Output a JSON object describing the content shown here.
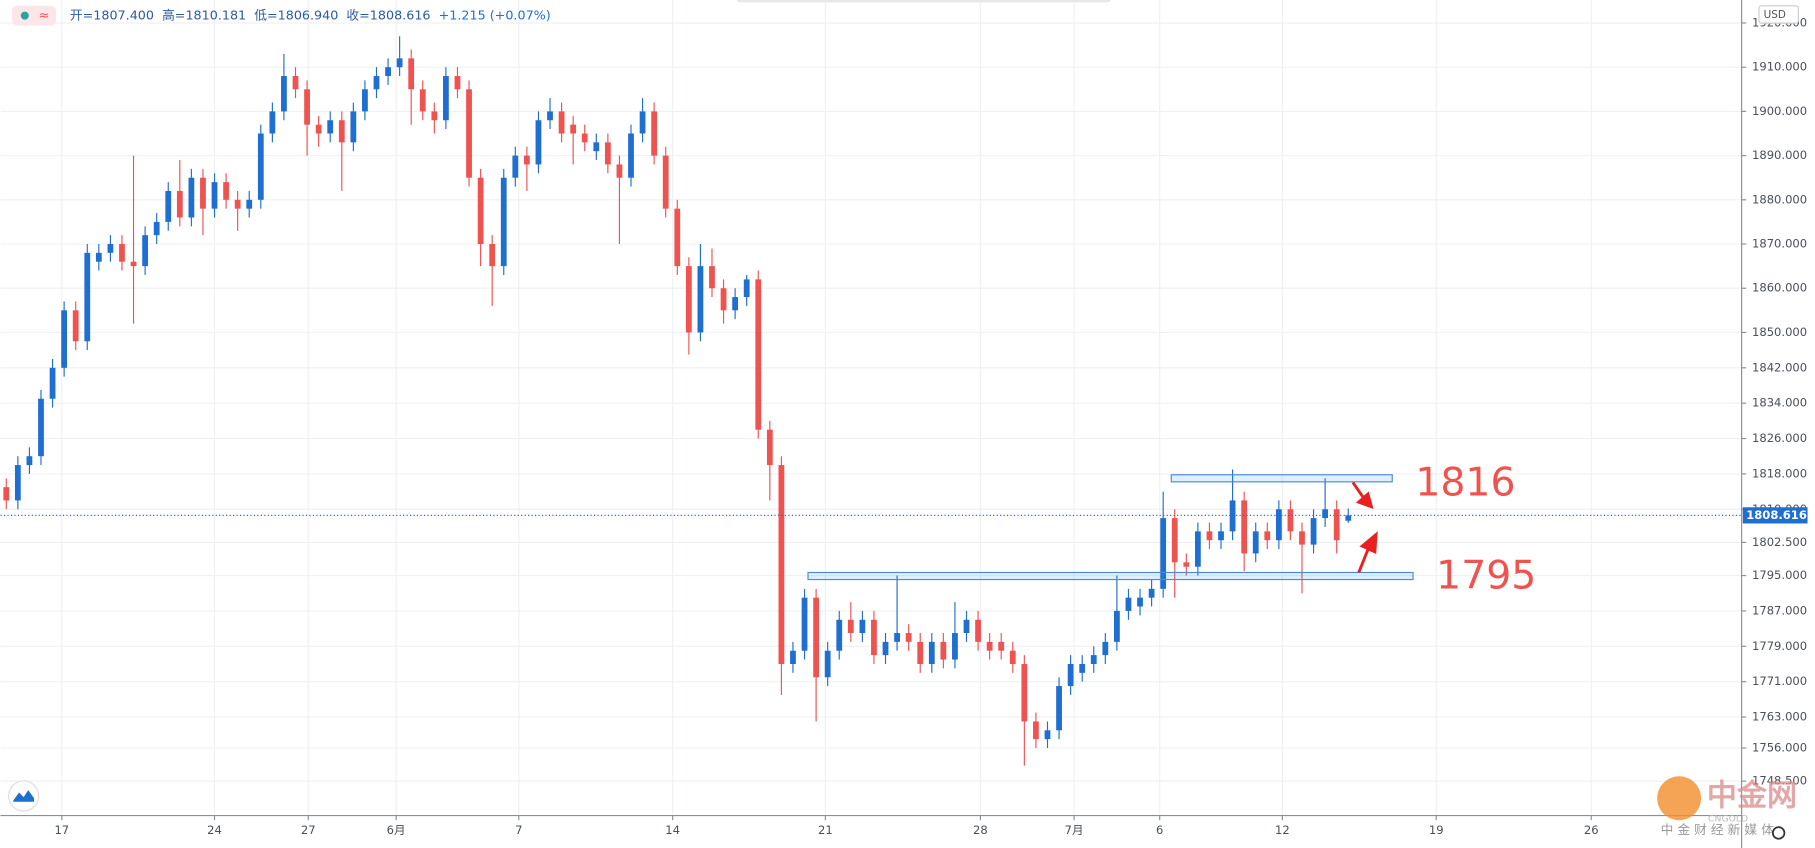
{
  "toolbar": {
    "ohlc": [
      "开=1807.400",
      "高=1810.181",
      "低=1806.940",
      "收=1808.616",
      "+1.215 (+0.07%)"
    ],
    "currency": "USD"
  },
  "watermark": {
    "brand": "中金网",
    "sub": "CNGOLD",
    "slogan": "中 金 财 经 新 媒 体"
  },
  "chart_data": {
    "type": "candlestick",
    "up_color": "#1e6fd0",
    "down_color": "#ef5350",
    "grid": true,
    "ylim": [
      1740.7,
      1925.2
    ],
    "yticks": [
      {
        "value": 1920,
        "label": "1920.000"
      },
      {
        "value": 1910,
        "label": "1910.000"
      },
      {
        "value": 1900,
        "label": "1900.000"
      },
      {
        "value": 1890,
        "label": "1890.000"
      },
      {
        "value": 1880,
        "label": "1880.000"
      },
      {
        "value": 1870,
        "label": "1870.000"
      },
      {
        "value": 1860,
        "label": "1860.000"
      },
      {
        "value": 1850,
        "label": "1850.000"
      },
      {
        "value": 1842,
        "label": "1842.000"
      },
      {
        "value": 1834,
        "label": "1834.000"
      },
      {
        "value": 1826,
        "label": "1826.000"
      },
      {
        "value": 1818,
        "label": "1818.000"
      },
      {
        "value": 1810,
        "label": "1810.000"
      },
      {
        "value": 1802.5,
        "label": "1802.500"
      },
      {
        "value": 1795,
        "label": "1795.000"
      },
      {
        "value": 1787,
        "label": "1787.000"
      },
      {
        "value": 1779,
        "label": "1779.000"
      },
      {
        "value": 1771,
        "label": "1771.000"
      },
      {
        "value": 1763,
        "label": "1763.000"
      },
      {
        "value": 1756,
        "label": "1756.000"
      },
      {
        "value": 1748.5,
        "label": "1748.500"
      }
    ],
    "xlim": [
      -0.5,
      150
    ],
    "xticks": [
      {
        "value": 4.8,
        "label": "17"
      },
      {
        "value": 18,
        "label": "24"
      },
      {
        "value": 26.1,
        "label": "27"
      },
      {
        "value": 33.7,
        "label": "6月"
      },
      {
        "value": 44.3,
        "label": "7"
      },
      {
        "value": 57.6,
        "label": "14"
      },
      {
        "value": 70.8,
        "label": "21"
      },
      {
        "value": 84.2,
        "label": "28"
      },
      {
        "value": 92.3,
        "label": "7月"
      },
      {
        "value": 99.7,
        "label": "6"
      },
      {
        "value": 110.3,
        "label": "12"
      },
      {
        "value": 123.6,
        "label": "19"
      },
      {
        "value": 137,
        "label": "26"
      }
    ],
    "open": [
      1815,
      1812,
      1820,
      1822,
      1835,
      1842,
      1855,
      1848,
      1866,
      1868,
      1870,
      1866,
      1865,
      1872,
      1875,
      1882,
      1876,
      1885,
      1878,
      1884,
      1880,
      1878,
      1880,
      1895,
      1900,
      1908,
      1905,
      1897,
      1895,
      1898,
      1893,
      1900,
      1905,
      1908,
      1910,
      1912,
      1905,
      1900,
      1898,
      1908,
      1905,
      1885,
      1870,
      1865,
      1885,
      1890,
      1888,
      1898,
      1900,
      1897,
      1895,
      1891,
      1893,
      1888,
      1885,
      1895,
      1900,
      1890,
      1878,
      1865,
      1850,
      1865,
      1860,
      1855,
      1858,
      1862,
      1828,
      1820,
      1775,
      1778,
      1790,
      1772,
      1778,
      1785,
      1782,
      1785,
      1777,
      1780,
      1782,
      1780,
      1775,
      1780,
      1776,
      1782,
      1785,
      1780,
      1780,
      1778,
      1775,
      1762,
      1758,
      1760,
      1770,
      1773,
      1775,
      1777,
      1780,
      1787,
      1788,
      1790,
      1792,
      1808,
      1798,
      1797,
      1805,
      1803,
      1805,
      1812,
      1800,
      1805,
      1803,
      1810,
      1805,
      1802,
      1808,
      1810,
      1807.4
    ],
    "high": [
      1817,
      1822,
      1824,
      1837,
      1844,
      1857,
      1857,
      1870,
      1870,
      1872,
      1872,
      1890,
      1874,
      1877,
      1884,
      1889,
      1887,
      1887,
      1886,
      1886,
      1882,
      1882,
      1897,
      1902,
      1913,
      1910,
      1907,
      1899,
      1900,
      1900,
      1902,
      1907,
      1910,
      1912,
      1917,
      1914,
      1907,
      1902,
      1910,
      1910,
      1907,
      1887,
      1872,
      1887,
      1892,
      1892,
      1900,
      1903,
      1902,
      1899,
      1897,
      1895,
      1895,
      1890,
      1897,
      1903,
      1902,
      1892,
      1880,
      1867,
      1870,
      1869,
      1862,
      1860,
      1863,
      1864,
      1830,
      1822,
      1780,
      1792,
      1792,
      1780,
      1787,
      1789,
      1787,
      1787,
      1782,
      1795,
      1784,
      1782,
      1782,
      1782,
      1789,
      1787,
      1787,
      1782,
      1782,
      1780,
      1777,
      1764,
      1762,
      1772,
      1777,
      1777,
      1779,
      1782,
      1795,
      1792,
      1792,
      1794,
      1814,
      1810,
      1800,
      1807,
      1807,
      1807,
      1819,
      1814,
      1807,
      1807,
      1812,
      1812,
      1807,
      1810,
      1817,
      1812,
      1810.181
    ],
    "low": [
      1810,
      1810,
      1818,
      1820,
      1833,
      1840,
      1846,
      1846,
      1864,
      1866,
      1864,
      1852,
      1863,
      1870,
      1873,
      1874,
      1874,
      1872,
      1876,
      1878,
      1873,
      1876,
      1878,
      1893,
      1898,
      1903,
      1890,
      1892,
      1893,
      1882,
      1891,
      1898,
      1903,
      1906,
      1908,
      1897,
      1898,
      1895,
      1896,
      1903,
      1883,
      1865,
      1856,
      1863,
      1883,
      1882,
      1886,
      1896,
      1893,
      1888,
      1891,
      1889,
      1886,
      1870,
      1883,
      1893,
      1888,
      1876,
      1863,
      1845,
      1848,
      1858,
      1852,
      1853,
      1856,
      1826,
      1812,
      1768,
      1773,
      1776,
      1762,
      1770,
      1776,
      1780,
      1780,
      1775,
      1775,
      1778,
      1778,
      1773,
      1773,
      1774,
      1774,
      1780,
      1778,
      1776,
      1776,
      1773,
      1752,
      1756,
      1756,
      1758,
      1768,
      1771,
      1773,
      1775,
      1778,
      1785,
      1786,
      1788,
      1790,
      1790,
      1795,
      1795,
      1801,
      1801,
      1803,
      1796,
      1798,
      1801,
      1801,
      1803,
      1791,
      1800,
      1806,
      1800,
      1806.94
    ],
    "close": [
      1812,
      1820,
      1822,
      1835,
      1842,
      1855,
      1848,
      1868,
      1868,
      1870,
      1866,
      1865,
      1872,
      1875,
      1882,
      1876,
      1885,
      1878,
      1884,
      1880,
      1878,
      1880,
      1895,
      1900,
      1908,
      1905,
      1897,
      1895,
      1898,
      1893,
      1900,
      1905,
      1908,
      1910,
      1912,
      1905,
      1900,
      1898,
      1908,
      1905,
      1885,
      1870,
      1865,
      1885,
      1890,
      1888,
      1898,
      1900,
      1895,
      1895,
      1893,
      1893,
      1888,
      1885,
      1895,
      1900,
      1890,
      1878,
      1865,
      1850,
      1865,
      1860,
      1855,
      1858,
      1862,
      1828,
      1820,
      1775,
      1778,
      1790,
      1772,
      1778,
      1785,
      1782,
      1785,
      1777,
      1780,
      1782,
      1780,
      1775,
      1780,
      1776,
      1782,
      1785,
      1780,
      1778,
      1778,
      1775,
      1762,
      1758,
      1760,
      1770,
      1775,
      1775,
      1777,
      1780,
      1787,
      1790,
      1790,
      1792,
      1808,
      1798,
      1797,
      1805,
      1803,
      1805,
      1812,
      1800,
      1805,
      1803,
      1810,
      1805,
      1802,
      1808,
      1810,
      1803,
      1808.616
    ],
    "last_price": 1808.616,
    "annotations": [
      {
        "value": 1816,
        "range": [
          1816.2,
          1817.8
        ],
        "x_range": [
          100.7,
          119.8
        ]
      },
      {
        "value": 1795,
        "range": [
          1794.1,
          1795.7
        ],
        "x_range": [
          69.3,
          121.6
        ]
      }
    ]
  }
}
